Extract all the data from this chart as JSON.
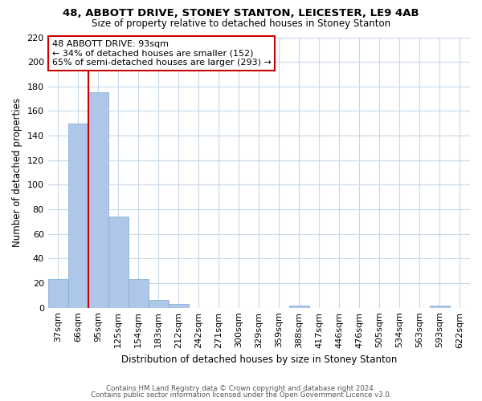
{
  "title": "48, ABBOTT DRIVE, STONEY STANTON, LEICESTER, LE9 4AB",
  "subtitle": "Size of property relative to detached houses in Stoney Stanton",
  "xlabel": "Distribution of detached houses by size in Stoney Stanton",
  "ylabel": "Number of detached properties",
  "bin_labels": [
    "37sqm",
    "66sqm",
    "95sqm",
    "125sqm",
    "154sqm",
    "183sqm",
    "212sqm",
    "242sqm",
    "271sqm",
    "300sqm",
    "329sqm",
    "359sqm",
    "388sqm",
    "417sqm",
    "446sqm",
    "476sqm",
    "505sqm",
    "534sqm",
    "563sqm",
    "593sqm",
    "622sqm"
  ],
  "bar_heights": [
    23,
    150,
    175,
    74,
    23,
    6,
    3,
    0,
    0,
    0,
    0,
    0,
    2,
    0,
    0,
    0,
    0,
    0,
    0,
    2,
    0
  ],
  "bar_color": "#aec6e8",
  "bar_edge_color": "#7aadd4",
  "highlight_line_color": "#cc0000",
  "annotation_title": "48 ABBOTT DRIVE: 93sqm",
  "annotation_line1": "← 34% of detached houses are smaller (152)",
  "annotation_line2": "65% of semi-detached houses are larger (293) →",
  "annotation_box_color": "#ffffff",
  "annotation_box_edge": "#cc0000",
  "ylim": [
    0,
    220
  ],
  "yticks": [
    0,
    20,
    40,
    60,
    80,
    100,
    120,
    140,
    160,
    180,
    200,
    220
  ],
  "footer1": "Contains HM Land Registry data © Crown copyright and database right 2024.",
  "footer2": "Contains public sector information licensed under the Open Government Licence v3.0.",
  "bg_color": "#ffffff",
  "grid_color": "#c8d8e8"
}
